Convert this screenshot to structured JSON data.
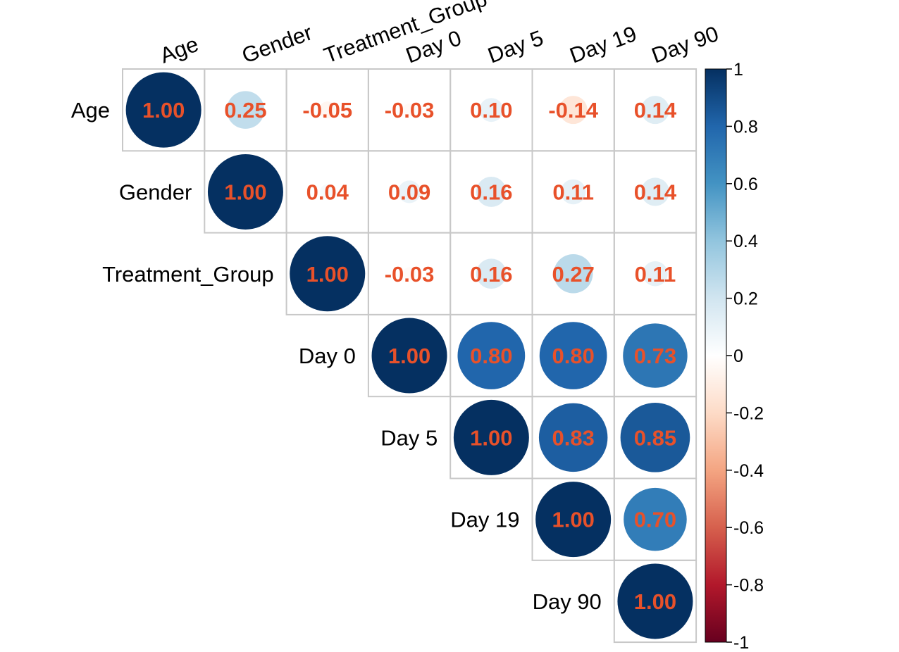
{
  "chart_data": {
    "type": "heatmap",
    "subtype": "correlation-matrix-upper-circles",
    "variables": [
      "Age",
      "Gender",
      "Treatment_Group",
      "Day 0",
      "Day 5",
      "Day 19",
      "Day 90"
    ],
    "matrix": [
      [
        1.0,
        0.25,
        -0.05,
        -0.03,
        0.1,
        -0.14,
        0.14
      ],
      [
        0.25,
        1.0,
        0.04,
        0.09,
        0.16,
        0.11,
        0.14
      ],
      [
        -0.05,
        0.04,
        1.0,
        -0.03,
        0.16,
        0.27,
        0.11
      ],
      [
        -0.03,
        0.09,
        -0.03,
        1.0,
        0.8,
        0.8,
        0.73
      ],
      [
        0.1,
        0.16,
        0.16,
        0.8,
        1.0,
        0.83,
        0.85
      ],
      [
        -0.14,
        0.11,
        0.27,
        0.8,
        0.83,
        1.0,
        0.7
      ],
      [
        0.14,
        0.14,
        0.11,
        0.73,
        0.85,
        0.7,
        1.0
      ]
    ],
    "value_labels": [
      [
        "1.00",
        "0.25",
        "-0.05",
        "-0.03",
        "0.10",
        "-0.14",
        "0.14"
      ],
      [
        "",
        "1.00",
        "0.04",
        "0.09",
        "0.16",
        "0.11",
        "0.14"
      ],
      [
        "",
        "",
        "1.00",
        "-0.03",
        "0.16",
        "0.27",
        "0.11"
      ],
      [
        "",
        "",
        "",
        "1.00",
        "0.80",
        "0.80",
        "0.73"
      ],
      [
        "",
        "",
        "",
        "",
        "1.00",
        "0.83",
        "0.85"
      ],
      [
        "",
        "",
        "",
        "",
        "",
        "1.00",
        "0.70"
      ],
      [
        "",
        "",
        "",
        "",
        "",
        "",
        "1.00"
      ]
    ],
    "shown": "upper-triangle",
    "colorbar": {
      "range": [
        -1,
        1
      ],
      "tick_labels": [
        "1",
        "0.8",
        "0.6",
        "0.4",
        "0.2",
        "0",
        "-0.2",
        "-0.4",
        "-0.6",
        "-0.8",
        "-1"
      ],
      "palette": [
        "#67001F",
        "#B2182B",
        "#D6604D",
        "#F4A582",
        "#FDDBC7",
        "#FFFFFF",
        "#D1E5F0",
        "#92C5DE",
        "#4393C3",
        "#2166AC",
        "#053061"
      ]
    },
    "colors": {
      "value_text": "#E8512A",
      "grid": "#C8C8C8"
    }
  }
}
